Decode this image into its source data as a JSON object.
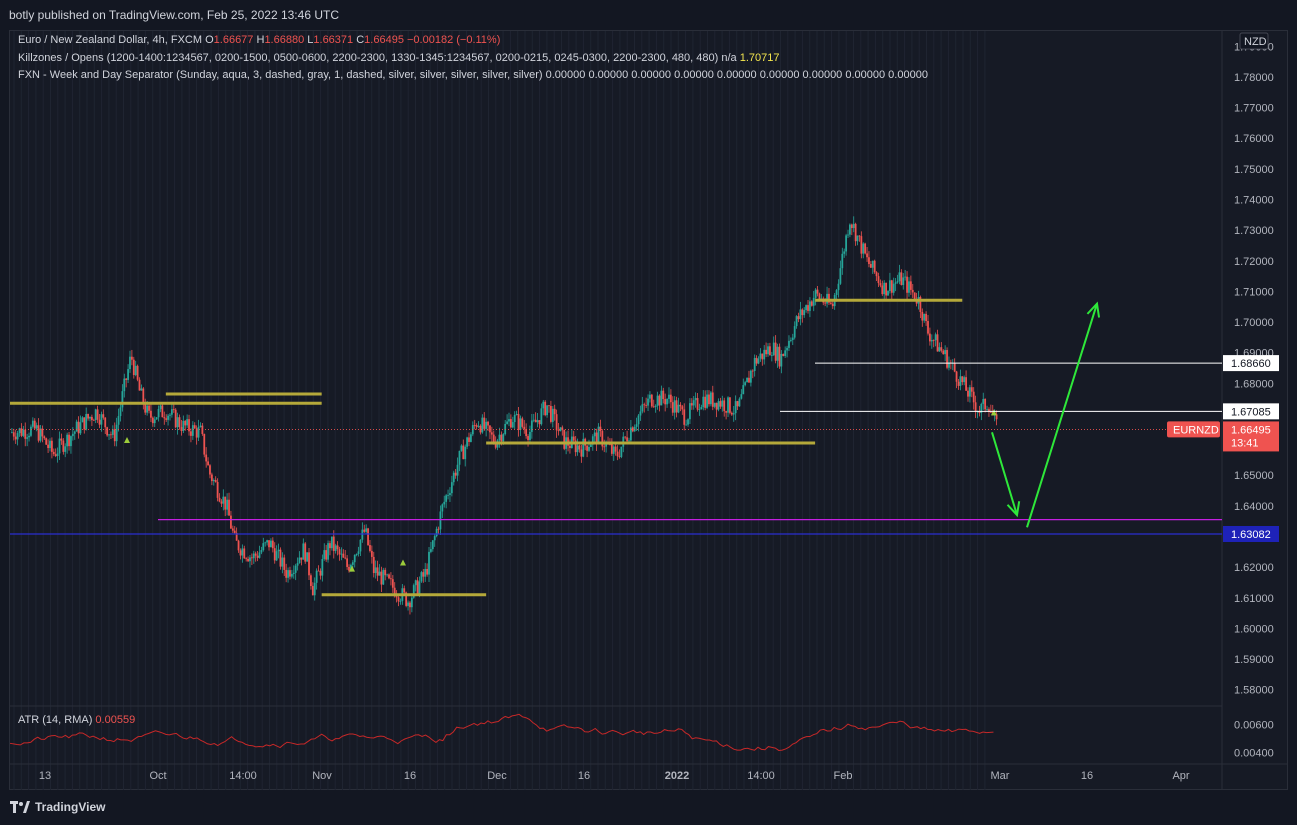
{
  "header": {
    "published_text": "botly published on TradingView.com, Feb 25, 2022 13:46 UTC"
  },
  "legend": {
    "symbol_line": {
      "name": "Euro / New Zealand Dollar, 4h, FXCM",
      "o_label": "O",
      "o_value": "1.66677",
      "h_label": "H",
      "h_value": "1.66880",
      "l_label": "L",
      "l_value": "1.66371",
      "c_label": "C",
      "c_value": "1.66495",
      "change": "−0.00182 (−0.11%)"
    },
    "killzones_line": {
      "text": "Killzones / Opens (1200-1400:1234567, 0200-1500, 0500-0600, 2200-2300, 1330-1345:1234567, 0200-0215, 0245-0300, 2200-2300, 480, 480)  n/a",
      "value": "1.70717"
    },
    "separator_line": {
      "text": "FXN - Week and Day Separator (Sunday, aqua, 3, dashed, gray, 1, dashed, silver, silver, silver, silver, silver)  0.00000  0.00000  0.00000  0.00000  0.00000  0.00000  0.00000  0.00000  0.00000"
    },
    "atr_label": "ATR (14, RMA)",
    "atr_value": "0.00559"
  },
  "footer": {
    "brand": "TradingView"
  },
  "colors": {
    "background": "#161a25",
    "up_candle": "#26a69a",
    "down_candle": "#ef5350",
    "level_line": "#b5a93a",
    "magenta_line": "#c41fe0",
    "blue_line": "#2a2fd0",
    "arrow": "#2ee83a",
    "atr_line": "#c62828",
    "marker": "#9ccc3b"
  },
  "chart_data": {
    "type": "candlestick",
    "symbol": "EURNZD",
    "timeframe": "4h",
    "currency": "NZD",
    "ylim": [
      1.575,
      1.795
    ],
    "y_ticks": [
      "1.58000",
      "1.59000",
      "1.60000",
      "1.61000",
      "1.62000",
      "1.63000",
      "1.64000",
      "1.65000",
      "1.66000",
      "1.67000",
      "1.68000",
      "1.69000",
      "1.70000",
      "1.71000",
      "1.72000",
      "1.73000",
      "1.74000",
      "1.75000",
      "1.76000",
      "1.77000",
      "1.78000",
      "1.79000"
    ],
    "x_ticks": [
      "13",
      "Oct",
      "14:00",
      "Nov",
      "16",
      "Dec",
      "16",
      "2022",
      "14:00",
      "Feb",
      "Mar",
      "16",
      "Apr"
    ],
    "price_path": [
      {
        "t": 0,
        "p": 1.664
      },
      {
        "t": 3,
        "p": 1.665
      },
      {
        "t": 5,
        "p": 1.657
      },
      {
        "t": 8,
        "p": 1.666
      },
      {
        "t": 10,
        "p": 1.671
      },
      {
        "t": 12,
        "p": 1.662
      },
      {
        "t": 13,
        "p": 1.676
      },
      {
        "t": 14,
        "p": 1.689
      },
      {
        "t": 15,
        "p": 1.677
      },
      {
        "t": 16,
        "p": 1.669
      },
      {
        "t": 18,
        "p": 1.671
      },
      {
        "t": 20,
        "p": 1.666
      },
      {
        "t": 22,
        "p": 1.664
      },
      {
        "t": 23,
        "p": 1.651
      },
      {
        "t": 25,
        "p": 1.64
      },
      {
        "t": 26,
        "p": 1.628
      },
      {
        "t": 28,
        "p": 1.623
      },
      {
        "t": 30,
        "p": 1.628
      },
      {
        "t": 32,
        "p": 1.618
      },
      {
        "t": 34,
        "p": 1.626
      },
      {
        "t": 35,
        "p": 1.613
      },
      {
        "t": 37,
        "p": 1.628
      },
      {
        "t": 39,
        "p": 1.62
      },
      {
        "t": 41,
        "p": 1.632
      },
      {
        "t": 42,
        "p": 1.619
      },
      {
        "t": 44,
        "p": 1.614
      },
      {
        "t": 46,
        "p": 1.609
      },
      {
        "t": 48,
        "p": 1.618
      },
      {
        "t": 50,
        "p": 1.64
      },
      {
        "t": 52,
        "p": 1.656
      },
      {
        "t": 54,
        "p": 1.668
      },
      {
        "t": 56,
        "p": 1.661
      },
      {
        "t": 58,
        "p": 1.669
      },
      {
        "t": 60,
        "p": 1.664
      },
      {
        "t": 62,
        "p": 1.673
      },
      {
        "t": 64,
        "p": 1.661
      },
      {
        "t": 66,
        "p": 1.659
      },
      {
        "t": 68,
        "p": 1.663
      },
      {
        "t": 70,
        "p": 1.656
      },
      {
        "t": 72,
        "p": 1.667
      },
      {
        "t": 74,
        "p": 1.675
      },
      {
        "t": 76,
        "p": 1.675
      },
      {
        "t": 78,
        "p": 1.669
      },
      {
        "t": 80,
        "p": 1.675
      },
      {
        "t": 82,
        "p": 1.674
      },
      {
        "t": 84,
        "p": 1.671
      },
      {
        "t": 86,
        "p": 1.687
      },
      {
        "t": 88,
        "p": 1.692
      },
      {
        "t": 89,
        "p": 1.688
      },
      {
        "t": 91,
        "p": 1.701
      },
      {
        "t": 93,
        "p": 1.709
      },
      {
        "t": 95,
        "p": 1.705
      },
      {
        "t": 96,
        "p": 1.719
      },
      {
        "t": 97,
        "p": 1.734
      },
      {
        "t": 99,
        "p": 1.72
      },
      {
        "t": 101,
        "p": 1.711
      },
      {
        "t": 103,
        "p": 1.714
      },
      {
        "t": 105,
        "p": 1.707
      },
      {
        "t": 106,
        "p": 1.697
      },
      {
        "t": 108,
        "p": 1.689
      },
      {
        "t": 110,
        "p": 1.68
      },
      {
        "t": 112,
        "p": 1.671
      },
      {
        "t": 113,
        "p": 1.674
      },
      {
        "t": 114,
        "p": 1.665
      }
    ],
    "horizontal_levels": [
      {
        "kind": "support-resistance",
        "price": 1.6735,
        "x_from": 0,
        "x_to": 36
      },
      {
        "kind": "support-resistance",
        "price": 1.6765,
        "x_from": 18,
        "x_to": 36
      },
      {
        "kind": "support-resistance",
        "price": 1.611,
        "x_from": 36,
        "x_to": 55
      },
      {
        "kind": "support-resistance",
        "price": 1.6605,
        "x_from": 55,
        "x_to": 93
      },
      {
        "kind": "support-resistance",
        "price": 1.7071,
        "x_from": 93,
        "x_to": 110
      },
      {
        "kind": "level",
        "price": 1.6866,
        "label": "1.68660"
      },
      {
        "kind": "level",
        "price": 1.67085,
        "label": "1.67085"
      },
      {
        "kind": "magenta",
        "price": 1.6355
      },
      {
        "kind": "blue",
        "price": 1.63082,
        "label": "1.63082"
      }
    ],
    "current_price": {
      "label": "EURNZD",
      "value": "1.66495",
      "countdown": "13:41"
    },
    "projection_arrows": [
      {
        "from_t": 114,
        "from_p": 1.664,
        "to_t": 117,
        "to_p": 1.637
      },
      {
        "from_t": 118,
        "from_p": 1.633,
        "to_t": 125,
        "to_p": 1.706
      }
    ],
    "atr": {
      "name": "ATR (14, RMA)",
      "last": 0.00559,
      "ylim": [
        0.0033,
        0.0072
      ],
      "y_ticks": [
        "0.00400",
        "0.00600"
      ]
    }
  }
}
